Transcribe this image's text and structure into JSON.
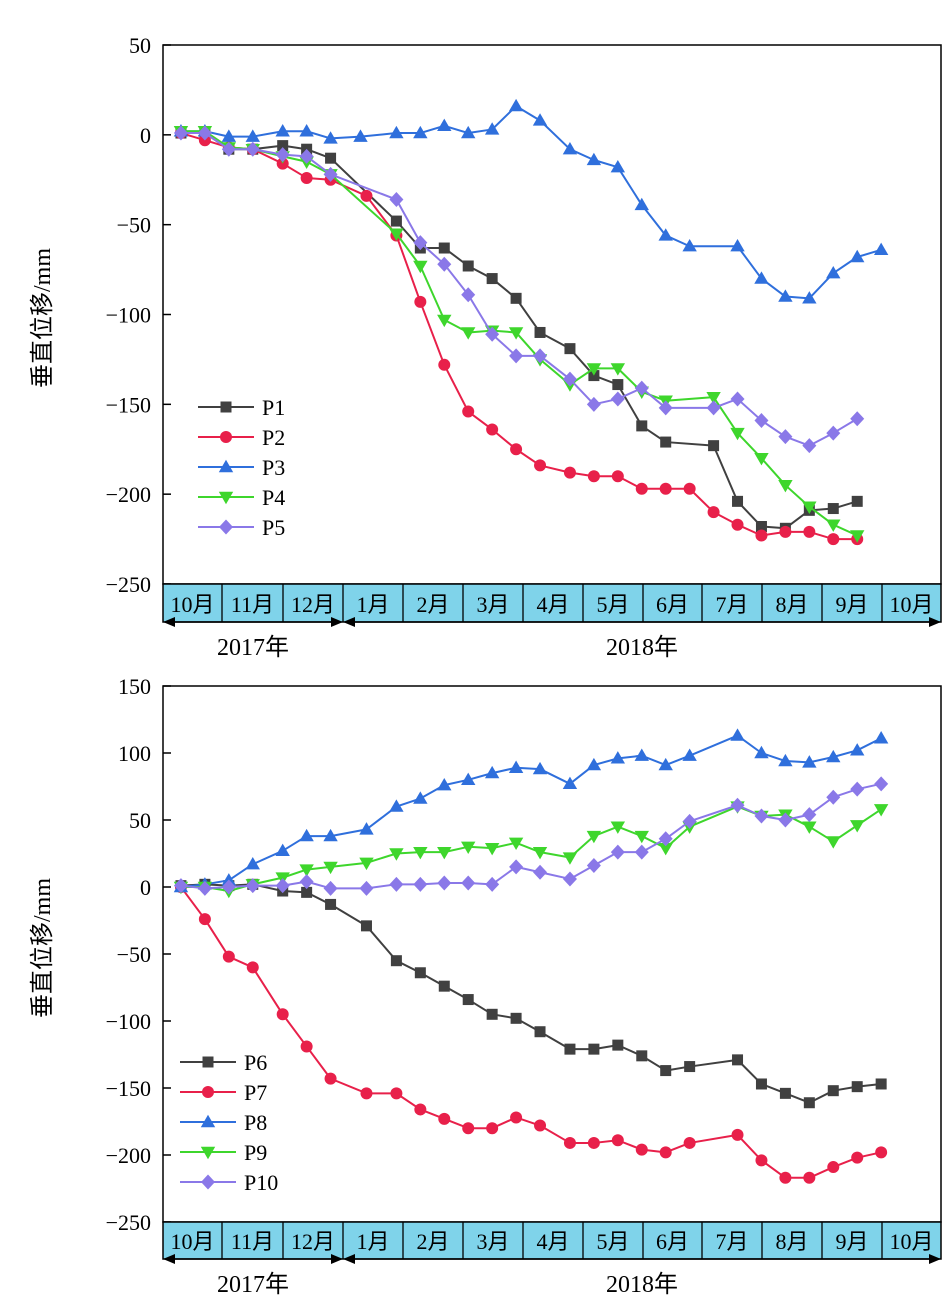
{
  "chart_data": [
    {
      "type": "line",
      "ylabel": "垂直位移/mm",
      "ylim": [
        -250,
        50
      ],
      "yticks": [
        50,
        0,
        -50,
        -100,
        -150,
        -200,
        -250
      ],
      "month_labels": [
        "10月",
        "11月",
        "12月",
        "1月",
        "2月",
        "3月",
        "4月",
        "5月",
        "6月",
        "7月",
        "8月",
        "9月",
        "10月"
      ],
      "year_labels": [
        "2017年",
        "2018年"
      ],
      "legend_position": "center-left",
      "series": [
        {
          "name": "P1",
          "color": "#404040",
          "marker": "square",
          "x": [
            0.3,
            0.7,
            1.1,
            1.5,
            2.0,
            2.4,
            2.8,
            3.9,
            4.3,
            4.7,
            5.1,
            5.5,
            5.9,
            6.3,
            6.8,
            7.2,
            7.6,
            8.0,
            8.4,
            9.2,
            9.6,
            10.0,
            10.4,
            10.8,
            11.2,
            11.6
          ],
          "y": [
            1,
            1,
            -8,
            -8,
            -6,
            -8,
            -13,
            -48,
            -63,
            -63,
            -73,
            -80,
            -91,
            -110,
            -119,
            -134,
            -139,
            -162,
            -171,
            -173,
            -204,
            -218,
            -219,
            -209,
            -208,
            -204
          ]
        },
        {
          "name": "P2",
          "color": "#e8204a",
          "marker": "circle",
          "x": [
            0.3,
            0.7,
            1.1,
            1.5,
            2.0,
            2.4,
            2.8,
            3.4,
            3.9,
            4.3,
            4.7,
            5.1,
            5.5,
            5.9,
            6.3,
            6.8,
            7.2,
            7.6,
            8.0,
            8.4,
            8.8,
            9.2,
            9.6,
            10.0,
            10.4,
            10.8,
            11.2,
            11.6
          ],
          "y": [
            1,
            -3,
            -7,
            -8,
            -16,
            -24,
            -25,
            -34,
            -56,
            -93,
            -128,
            -154,
            -164,
            -175,
            -184,
            -188,
            -190,
            -190,
            -197,
            -197,
            -197,
            -210,
            -217,
            -223,
            -221,
            -221,
            -225,
            -225
          ]
        },
        {
          "name": "P3",
          "color": "#2f6fdc",
          "marker": "triangle-up",
          "x": [
            0.3,
            0.7,
            1.1,
            1.5,
            2.0,
            2.4,
            2.8,
            3.3,
            3.9,
            4.3,
            4.7,
            5.1,
            5.5,
            5.9,
            6.3,
            6.8,
            7.2,
            7.6,
            8.0,
            8.4,
            8.8,
            9.6,
            10.0,
            10.4,
            10.8,
            11.2,
            11.6,
            12.0
          ],
          "y": [
            2,
            2,
            -1,
            -1,
            2,
            2,
            -2,
            -1,
            1,
            1,
            5,
            1,
            3,
            16,
            8,
            -8,
            -14,
            -18,
            -39,
            -56,
            -62,
            -62,
            -80,
            -90,
            -91,
            -77,
            -68,
            -64
          ]
        },
        {
          "name": "P4",
          "color": "#3ed62c",
          "marker": "triangle-down",
          "x": [
            0.3,
            0.7,
            1.1,
            1.5,
            2.0,
            2.4,
            2.8,
            3.9,
            4.3,
            4.7,
            5.1,
            5.5,
            5.9,
            6.3,
            6.8,
            7.2,
            7.6,
            8.0,
            8.4,
            9.2,
            9.6,
            10.0,
            10.4,
            10.8,
            11.2,
            11.6
          ],
          "y": [
            2,
            2,
            -7,
            -8,
            -12,
            -15,
            -22,
            -55,
            -73,
            -103,
            -110,
            -109,
            -110,
            -125,
            -139,
            -130,
            -130,
            -143,
            -148,
            -146,
            -166,
            -180,
            -195,
            -207,
            -217,
            -223
          ]
        },
        {
          "name": "P5",
          "color": "#8a78e8",
          "marker": "diamond",
          "x": [
            0.3,
            0.7,
            1.1,
            1.5,
            2.0,
            2.4,
            2.8,
            3.9,
            4.3,
            4.7,
            5.1,
            5.5,
            5.9,
            6.3,
            6.8,
            7.2,
            7.6,
            8.0,
            8.4,
            9.2,
            9.6,
            10.0,
            10.4,
            10.8,
            11.2,
            11.6
          ],
          "y": [
            1,
            1,
            -8,
            -8,
            -11,
            -12,
            -22,
            -36,
            -60,
            -72,
            -89,
            -111,
            -123,
            -123,
            -136,
            -150,
            -147,
            -141,
            -152,
            -152,
            -147,
            -159,
            -168,
            -173,
            -166,
            -158
          ]
        }
      ]
    },
    {
      "type": "line",
      "ylabel": "垂直位移/mm",
      "ylim": [
        -250,
        150
      ],
      "yticks": [
        150,
        100,
        50,
        0,
        -50,
        -100,
        -150,
        -200,
        -250
      ],
      "month_labels": [
        "10月",
        "11月",
        "12月",
        "1月",
        "2月",
        "3月",
        "4月",
        "5月",
        "6月",
        "7月",
        "8月",
        "9月",
        "10月"
      ],
      "year_labels": [
        "2017年",
        "2018年"
      ],
      "legend_position": "bottom-left",
      "series": [
        {
          "name": "P6",
          "color": "#404040",
          "marker": "square",
          "x": [
            0.3,
            0.7,
            1.1,
            1.5,
            2.0,
            2.4,
            2.8,
            3.4,
            3.9,
            4.3,
            4.7,
            5.1,
            5.5,
            5.9,
            6.3,
            6.8,
            7.2,
            7.6,
            8.0,
            8.4,
            8.8,
            9.6,
            10.0,
            10.4,
            10.8,
            11.2,
            11.6,
            12.0
          ],
          "y": [
            1,
            2,
            1,
            2,
            -3,
            -4,
            -13,
            -29,
            -55,
            -64,
            -74,
            -84,
            -95,
            -98,
            -108,
            -121,
            -121,
            -118,
            -126,
            -137,
            -134,
            -129,
            -147,
            -154,
            -161,
            -152,
            -149,
            -147
          ]
        },
        {
          "name": "P7",
          "color": "#e8204a",
          "marker": "circle",
          "x": [
            0.3,
            0.7,
            1.1,
            1.5,
            2.0,
            2.4,
            2.8,
            3.4,
            3.9,
            4.3,
            4.7,
            5.1,
            5.5,
            5.9,
            6.3,
            6.8,
            7.2,
            7.6,
            8.0,
            8.4,
            8.8,
            9.6,
            10.0,
            10.4,
            10.8,
            11.2,
            11.6,
            12.0
          ],
          "y": [
            0,
            -24,
            -52,
            -60,
            -95,
            -119,
            -143,
            -154,
            -154,
            -166,
            -173,
            -180,
            -180,
            -172,
            -178,
            -191,
            -191,
            -189,
            -196,
            -198,
            -191,
            -185,
            -204,
            -217,
            -217,
            -209,
            -202,
            -198
          ]
        },
        {
          "name": "P8",
          "color": "#2f6fdc",
          "marker": "triangle-up",
          "x": [
            0.3,
            0.7,
            1.1,
            1.5,
            2.0,
            2.4,
            2.8,
            3.4,
            3.9,
            4.3,
            4.7,
            5.1,
            5.5,
            5.9,
            6.3,
            6.8,
            7.2,
            7.6,
            8.0,
            8.4,
            8.8,
            9.6,
            10.0,
            10.4,
            10.8,
            11.2,
            11.6,
            12.0
          ],
          "y": [
            0,
            2,
            5,
            17,
            27,
            38,
            38,
            43,
            60,
            66,
            76,
            80,
            85,
            89,
            88,
            77,
            91,
            96,
            98,
            91,
            98,
            113,
            100,
            94,
            93,
            97,
            102,
            111
          ]
        },
        {
          "name": "P9",
          "color": "#3ed62c",
          "marker": "triangle-down",
          "x": [
            0.3,
            0.7,
            1.1,
            1.5,
            2.0,
            2.4,
            2.8,
            3.4,
            3.9,
            4.3,
            4.7,
            5.1,
            5.5,
            5.9,
            6.3,
            6.8,
            7.2,
            7.6,
            8.0,
            8.4,
            8.8,
            9.6,
            10.0,
            10.4,
            10.8,
            11.2,
            11.6,
            12.0
          ],
          "y": [
            0,
            0,
            -3,
            2,
            7,
            13,
            15,
            18,
            25,
            26,
            26,
            30,
            29,
            33,
            26,
            22,
            38,
            45,
            38,
            29,
            45,
            60,
            53,
            54,
            45,
            34,
            46,
            58
          ]
        },
        {
          "name": "P10",
          "color": "#8a78e8",
          "marker": "diamond",
          "x": [
            0.3,
            0.7,
            1.1,
            1.5,
            2.0,
            2.4,
            2.8,
            3.4,
            3.9,
            4.3,
            4.7,
            5.1,
            5.5,
            5.9,
            6.3,
            6.8,
            7.2,
            7.6,
            8.0,
            8.4,
            8.8,
            9.6,
            10.0,
            10.4,
            10.8,
            11.2,
            11.6,
            12.0
          ],
          "y": [
            1,
            -1,
            0,
            1,
            1,
            4,
            -1,
            -1,
            2,
            2,
            3,
            3,
            2,
            15,
            11,
            6,
            16,
            26,
            26,
            36,
            49,
            61,
            53,
            50,
            54,
            67,
            73,
            77
          ]
        }
      ]
    }
  ]
}
